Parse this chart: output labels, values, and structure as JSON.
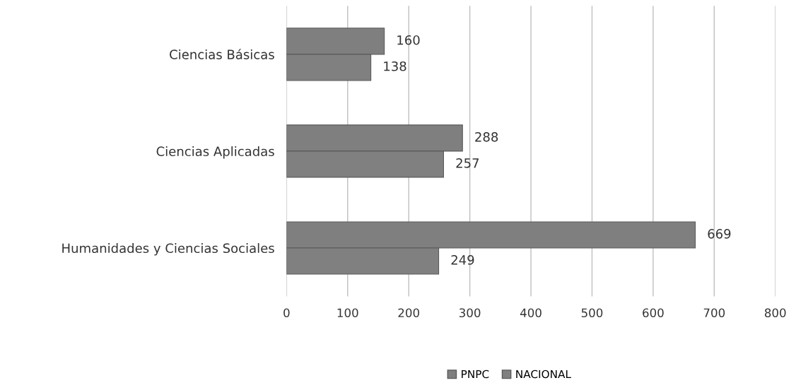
{
  "chart_data": {
    "type": "bar",
    "orientation": "horizontal",
    "categories": [
      "Ciencias Básicas",
      "Ciencias Aplicadas",
      "Humanidades y Ciencias Sociales"
    ],
    "series": [
      {
        "name": "PNPC",
        "color": "#7f7f7f",
        "values": [
          160,
          288,
          669
        ]
      },
      {
        "name": "NACIONAL",
        "color": "#808080",
        "values": [
          138,
          257,
          249
        ]
      }
    ],
    "xlim": [
      0,
      800
    ],
    "xticks": [
      0,
      100,
      200,
      300,
      400,
      500,
      600,
      700,
      800
    ],
    "grid": "x",
    "legend": "bottom",
    "data_labels": true
  }
}
